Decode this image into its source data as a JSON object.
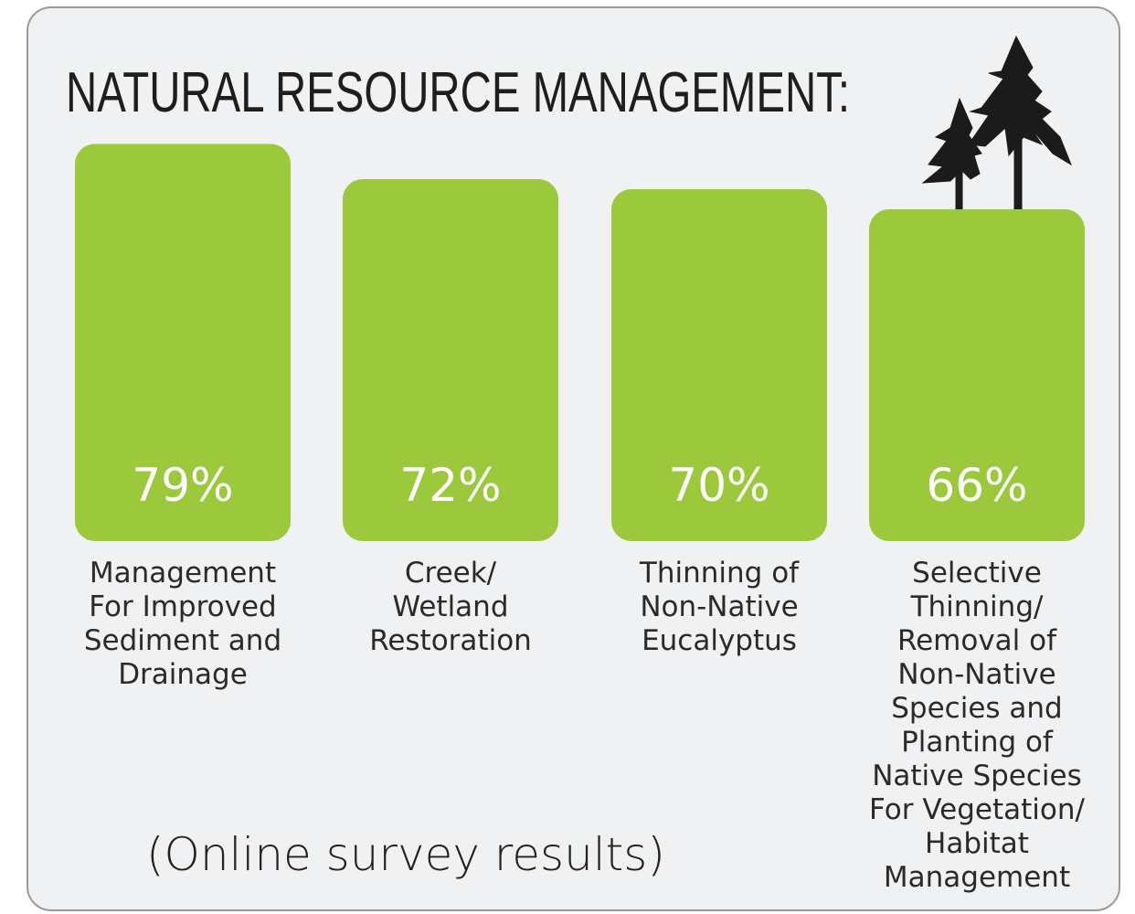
{
  "chart_data": {
    "type": "bar",
    "title": "NATURAL RESOURCE MANAGEMENT:",
    "categories": [
      "Management\nFor Improved\nSediment and\nDrainage",
      "Creek/\nWetland\nRestoration",
      "Thinning of\nNon-Native\nEucalyptus",
      "Selective\nThinning/\nRemoval of\nNon-Native\nSpecies and\nPlanting of\nNative Species\nFor Vegetation/\nHabitat\nManagement"
    ],
    "values": [
      79,
      72,
      70,
      66
    ],
    "value_labels": [
      "79%",
      "72%",
      "70%",
      "66%"
    ],
    "color": "#9bc93b",
    "note": "(Online survey results)"
  }
}
